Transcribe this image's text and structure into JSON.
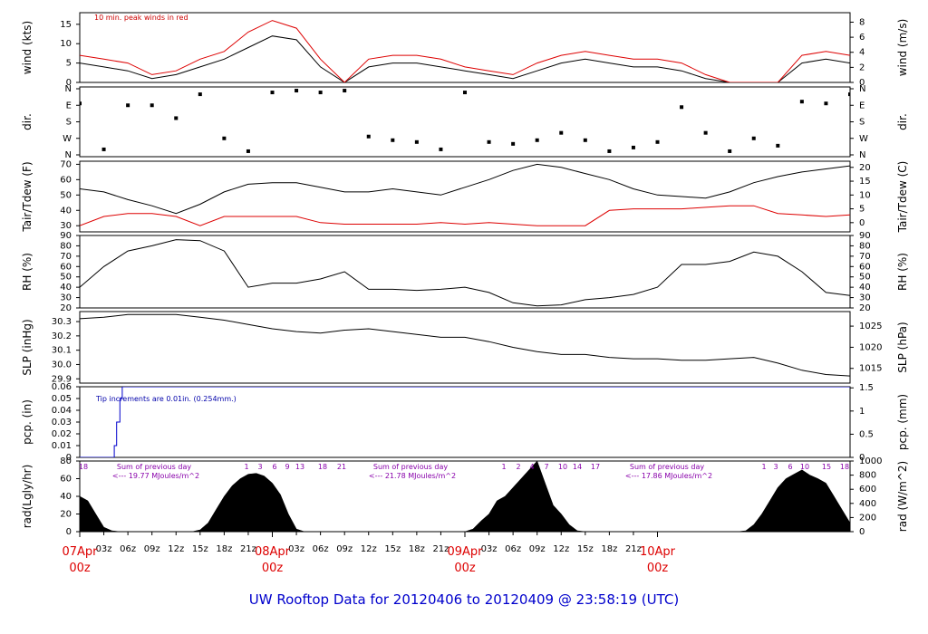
{
  "title": "UW Rooftop Data for 20120406  to  20120409 @ 23:58:19  (UTC)",
  "time_axis": {
    "hour_ticks": [
      "03z",
      "06z",
      "09z",
      "12z",
      "15z",
      "18z",
      "21z",
      "03z",
      "06z",
      "09z",
      "12z",
      "15z",
      "18z",
      "21z",
      "03z",
      "06z",
      "09z",
      "12z",
      "15z",
      "18z",
      "21z"
    ],
    "date_labels": [
      {
        "date": "07Apr",
        "time": "00z"
      },
      {
        "date": "08Apr",
        "time": "00z"
      },
      {
        "date": "09Apr",
        "time": "00z"
      },
      {
        "date": "10Apr",
        "time": "00z"
      }
    ]
  },
  "colors": {
    "peak_wind": "#dd0000",
    "dewpoint": "#dd0000",
    "precip": "#0000cc",
    "annotation": "#8800aa"
  },
  "chart_data": [
    {
      "type": "line",
      "panel": "wind",
      "ylabel": "wind (kts)",
      "ylabel_right": "wind (m/s)",
      "yticks_left": [
        "0",
        "5",
        "10",
        "15"
      ],
      "yticks_right": [
        "0",
        "2",
        "4",
        "6",
        "8"
      ],
      "ylim": [
        0,
        18
      ],
      "annotation": "10 min. peak winds in red",
      "series": [
        {
          "name": "wind speed (kts)",
          "x": [
            0,
            3,
            6,
            9,
            12,
            15,
            18,
            21,
            24,
            27,
            30,
            33,
            36,
            39,
            42,
            45,
            48,
            51,
            54,
            57,
            60,
            63,
            66,
            69,
            72,
            75,
            78,
            81,
            84,
            87,
            90,
            93,
            96
          ],
          "values": [
            5,
            4,
            3,
            1,
            2,
            4,
            6,
            9,
            12,
            11,
            4,
            0,
            4,
            5,
            5,
            4,
            3,
            2,
            1,
            3,
            5,
            6,
            5,
            4,
            4,
            3,
            1,
            0,
            0,
            0,
            5,
            6,
            5
          ]
        },
        {
          "name": "10 min. peak winds",
          "x": [
            0,
            3,
            6,
            9,
            12,
            15,
            18,
            21,
            24,
            27,
            30,
            33,
            36,
            39,
            42,
            45,
            48,
            51,
            54,
            57,
            60,
            63,
            66,
            69,
            72,
            75,
            78,
            81,
            84,
            87,
            90,
            93,
            96
          ],
          "values": [
            7,
            6,
            5,
            2,
            3,
            6,
            8,
            13,
            16,
            14,
            6,
            0,
            6,
            7,
            7,
            6,
            4,
            3,
            2,
            5,
            7,
            8,
            7,
            6,
            6,
            5,
            2,
            0,
            0,
            0,
            7,
            8,
            7
          ]
        }
      ]
    },
    {
      "type": "scatter",
      "panel": "dir",
      "ylabel": "dir.",
      "yticks_left": [
        "N",
        "W",
        "S",
        "E",
        "N"
      ],
      "yticks_right": [
        "N",
        "W",
        "S",
        "E",
        "N"
      ],
      "ylim": [
        0,
        360
      ],
      "series": [
        {
          "name": "direction",
          "x": [
            0,
            3,
            6,
            9,
            12,
            15,
            18,
            21,
            24,
            27,
            30,
            33,
            36,
            39,
            42,
            45,
            48,
            51,
            54,
            57,
            60,
            63,
            66,
            69,
            72,
            75,
            78,
            81,
            84,
            87,
            90,
            93,
            96
          ],
          "values": [
            280,
            30,
            270,
            270,
            200,
            330,
            90,
            20,
            340,
            350,
            340,
            350,
            100,
            80,
            70,
            30,
            340,
            70,
            60,
            80,
            120,
            80,
            20,
            40,
            70,
            260,
            120,
            20,
            90,
            50,
            290,
            280,
            330
          ]
        }
      ]
    },
    {
      "type": "line",
      "panel": "temperature",
      "ylabel": "Tair/Tdew (F)",
      "ylabel_right": "Tair/Tdew (C)",
      "yticks_left": [
        "30",
        "40",
        "50",
        "60",
        "70"
      ],
      "yticks_right": [
        "0",
        "5",
        "10",
        "15",
        "20"
      ],
      "ylim": [
        26,
        72
      ],
      "series": [
        {
          "name": "Tair",
          "x": [
            0,
            3,
            6,
            9,
            12,
            15,
            18,
            21,
            24,
            27,
            30,
            33,
            36,
            39,
            42,
            45,
            48,
            51,
            54,
            57,
            60,
            63,
            66,
            69,
            72,
            75,
            78,
            81,
            84,
            87,
            90,
            93,
            96
          ],
          "values": [
            54,
            52,
            47,
            43,
            38,
            44,
            52,
            57,
            58,
            58,
            55,
            52,
            52,
            54,
            52,
            50,
            55,
            60,
            66,
            70,
            68,
            64,
            60,
            54,
            50,
            49,
            48,
            52,
            58,
            62,
            65,
            67,
            69
          ]
        },
        {
          "name": "Tdew",
          "x": [
            0,
            3,
            6,
            9,
            12,
            15,
            18,
            21,
            24,
            27,
            30,
            33,
            36,
            39,
            42,
            45,
            48,
            51,
            54,
            57,
            60,
            63,
            66,
            69,
            72,
            75,
            78,
            81,
            84,
            87,
            90,
            93,
            96
          ],
          "values": [
            30,
            36,
            38,
            38,
            36,
            30,
            36,
            36,
            36,
            36,
            32,
            31,
            31,
            31,
            31,
            32,
            31,
            32,
            31,
            30,
            30,
            30,
            40,
            41,
            41,
            41,
            42,
            43,
            43,
            38,
            37,
            36,
            37
          ]
        }
      ]
    },
    {
      "type": "line",
      "panel": "rh",
      "ylabel": "RH (%)",
      "ylabel_right": "RH (%)",
      "yticks_left": [
        "20",
        "30",
        "40",
        "50",
        "60",
        "70",
        "80",
        "90"
      ],
      "yticks_right": [
        "20",
        "30",
        "40",
        "50",
        "60",
        "70",
        "80",
        "90"
      ],
      "ylim": [
        20,
        90
      ],
      "series": [
        {
          "name": "RH",
          "x": [
            0,
            3,
            6,
            9,
            12,
            15,
            18,
            21,
            24,
            27,
            30,
            33,
            36,
            39,
            42,
            45,
            48,
            51,
            54,
            57,
            60,
            63,
            66,
            69,
            72,
            75,
            78,
            81,
            84,
            87,
            90,
            93,
            96
          ],
          "values": [
            40,
            60,
            75,
            80,
            86,
            85,
            75,
            40,
            44,
            44,
            48,
            55,
            38,
            38,
            37,
            38,
            40,
            35,
            25,
            22,
            23,
            28,
            30,
            33,
            40,
            62,
            62,
            65,
            74,
            70,
            55,
            35,
            32
          ]
        }
      ]
    },
    {
      "type": "line",
      "panel": "slp",
      "ylabel": "SLP (inHg)",
      "ylabel_right": "SLP (hPa)",
      "yticks_left": [
        "29.9",
        "30.0",
        "30.1",
        "30.2",
        "30.3"
      ],
      "yticks_right": [
        "1015",
        "1020",
        "1025"
      ],
      "ylim": [
        29.87,
        30.37
      ],
      "series": [
        {
          "name": "SLP",
          "x": [
            0,
            3,
            6,
            9,
            12,
            15,
            18,
            21,
            24,
            27,
            30,
            33,
            36,
            39,
            42,
            45,
            48,
            51,
            54,
            57,
            60,
            63,
            66,
            69,
            72,
            75,
            78,
            81,
            84,
            87,
            90,
            93,
            96
          ],
          "values": [
            30.32,
            30.33,
            30.35,
            30.35,
            30.35,
            30.33,
            30.31,
            30.28,
            30.25,
            30.23,
            30.22,
            30.24,
            30.25,
            30.23,
            30.21,
            30.19,
            30.19,
            30.16,
            30.12,
            30.09,
            30.07,
            30.07,
            30.05,
            30.04,
            30.04,
            30.03,
            30.03,
            30.04,
            30.05,
            30.01,
            29.96,
            29.93,
            29.92
          ]
        }
      ]
    },
    {
      "type": "line",
      "panel": "precip",
      "ylabel": "pcp. (in)",
      "ylabel_right": "pcp. (mm)",
      "yticks_left": [
        "0",
        "0.01",
        "0.02",
        "0.03",
        "0.04",
        "0.05",
        "0.06"
      ],
      "yticks_right": [
        "0",
        "0.5",
        "1",
        "1.5"
      ],
      "ylim": [
        0,
        0.06
      ],
      "annotation": "Tip increments are 0.01in. (0.254mm.)",
      "series": [
        {
          "name": "cumulative precip",
          "x": [
            0,
            4.3,
            4.3,
            4.6,
            4.6,
            5.0,
            5.0,
            5.3,
            5.3,
            96
          ],
          "values": [
            0,
            0,
            0.01,
            0.01,
            0.03,
            0.03,
            0.05,
            0.05,
            0.06,
            0.06
          ]
        }
      ]
    },
    {
      "type": "area",
      "panel": "radiation",
      "ylabel": "rad(Lgly/hr)",
      "ylabel_right": "rad (W/m^2)",
      "yticks_left": [
        "0",
        "20",
        "40",
        "60",
        "80"
      ],
      "yticks_right": [
        "0",
        "200",
        "400",
        "600",
        "800",
        "1000"
      ],
      "ylim": [
        0,
        80
      ],
      "annotations": [
        {
          "text": "Sum of previous day",
          "value": "<--- 19.77 MJoules/m^2"
        },
        {
          "text": "Sum of previous day",
          "value": "<--- 21.78 MJoules/m^2"
        },
        {
          "text": "Sum of previous day",
          "value": "<--- 17.86 MJoules/m^2"
        }
      ],
      "hour_labels": [
        [
          "18"
        ],
        [
          "1",
          "3",
          "6",
          "9",
          "13",
          "18",
          "21"
        ],
        [
          "1",
          "2",
          "4",
          "7",
          "10",
          "14",
          "17"
        ],
        [
          "1",
          "3",
          "6",
          "10",
          "15",
          "18"
        ]
      ],
      "series": [
        {
          "name": "solar radiation",
          "x": [
            0,
            1,
            2,
            3,
            4,
            5,
            6,
            7,
            8,
            9,
            10,
            11,
            12,
            13,
            14,
            15,
            16,
            17,
            18,
            19,
            20,
            21,
            22,
            23,
            24,
            25,
            26,
            27,
            28,
            29,
            30,
            31,
            32,
            33,
            34,
            35,
            36,
            37,
            38,
            39,
            40,
            41,
            42,
            43,
            44,
            45,
            46,
            47,
            48,
            49,
            50,
            51,
            52,
            53,
            54,
            55,
            56,
            57,
            58,
            59,
            60,
            61,
            62,
            63,
            64,
            65,
            66,
            67,
            68,
            69,
            70,
            71,
            72,
            73,
            74,
            75,
            76,
            77,
            78,
            79,
            80,
            81,
            82,
            83,
            84,
            85,
            86,
            87,
            88,
            89,
            90,
            91,
            92,
            93,
            94,
            95,
            96
          ],
          "values": [
            40,
            35,
            20,
            5,
            1,
            0,
            0,
            0,
            0,
            0,
            0,
            0,
            0,
            0,
            0,
            2,
            10,
            25,
            40,
            52,
            60,
            65,
            66,
            63,
            55,
            42,
            20,
            3,
            0,
            0,
            0,
            0,
            0,
            0,
            0,
            0,
            0,
            0,
            0,
            0,
            0,
            0,
            0,
            0,
            0,
            0,
            0,
            0,
            0,
            3,
            12,
            20,
            35,
            40,
            50,
            60,
            70,
            80,
            55,
            30,
            20,
            8,
            1,
            0,
            0,
            0,
            0,
            0,
            0,
            0,
            0,
            0,
            0,
            0,
            0,
            0,
            0,
            0,
            0,
            0,
            0,
            0,
            0,
            1,
            8,
            20,
            35,
            50,
            60,
            65,
            70,
            64,
            60,
            55,
            40,
            25,
            10
          ]
        }
      ]
    }
  ]
}
